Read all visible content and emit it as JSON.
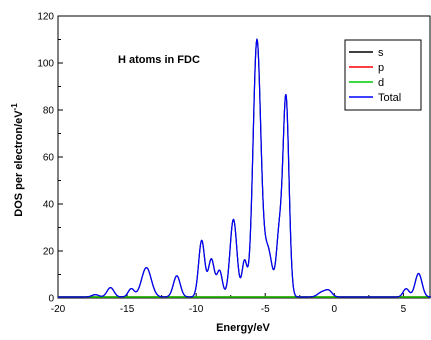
{
  "chart_data": {
    "type": "line",
    "annotation": "H atoms in FDC",
    "xlabel": "Energy/eV",
    "ylabel_main": "DOS per electron/eV",
    "ylabel_sup": "-1",
    "xlim": [
      -20,
      7
    ],
    "ylim": [
      0,
      120
    ],
    "xticks": [
      -20,
      -15,
      -10,
      -5,
      0,
      5
    ],
    "yticks": [
      0,
      20,
      40,
      60,
      80,
      100,
      120
    ],
    "xtick_labels": [
      "-20",
      "-15",
      "-10",
      "-5",
      "0",
      "5"
    ],
    "ytick_labels": [
      "0",
      "20",
      "40",
      "60",
      "80",
      "100",
      "120"
    ],
    "grid": false,
    "legend_position": "top-right",
    "series": [
      {
        "name": "s",
        "color": "#000000",
        "values": "same as Total"
      },
      {
        "name": "p",
        "color": "#ff0000",
        "values": "zero"
      },
      {
        "name": "d",
        "color": "#00cc00",
        "values": "zero"
      },
      {
        "name": "Total",
        "color": "#0000ff",
        "peaks": [
          {
            "x": -17.3,
            "y": 1,
            "w": 0.25
          },
          {
            "x": -16.2,
            "y": 4,
            "w": 0.25
          },
          {
            "x": -14.7,
            "y": 3.5,
            "w": 0.22
          },
          {
            "x": -13.6,
            "y": 12.5,
            "w": 0.35
          },
          {
            "x": -11.4,
            "y": 9,
            "w": 0.25
          },
          {
            "x": -9.6,
            "y": 24,
            "w": 0.22
          },
          {
            "x": -8.9,
            "y": 16,
            "w": 0.22
          },
          {
            "x": -8.3,
            "y": 11,
            "w": 0.2
          },
          {
            "x": -7.3,
            "y": 33,
            "w": 0.25
          },
          {
            "x": -6.5,
            "y": 15,
            "w": 0.18
          },
          {
            "x": -5.6,
            "y": 109,
            "w": 0.28
          },
          {
            "x": -4.8,
            "y": 20,
            "w": 0.3
          },
          {
            "x": -4.0,
            "y": 25,
            "w": 0.2
          },
          {
            "x": -3.5,
            "y": 85,
            "w": 0.22
          },
          {
            "x": -0.9,
            "y": 2,
            "w": 0.3
          },
          {
            "x": -0.4,
            "y": 2.5,
            "w": 0.25
          },
          {
            "x": 5.2,
            "y": 3.5,
            "w": 0.22
          },
          {
            "x": 6.1,
            "y": 10,
            "w": 0.25
          }
        ]
      }
    ]
  }
}
